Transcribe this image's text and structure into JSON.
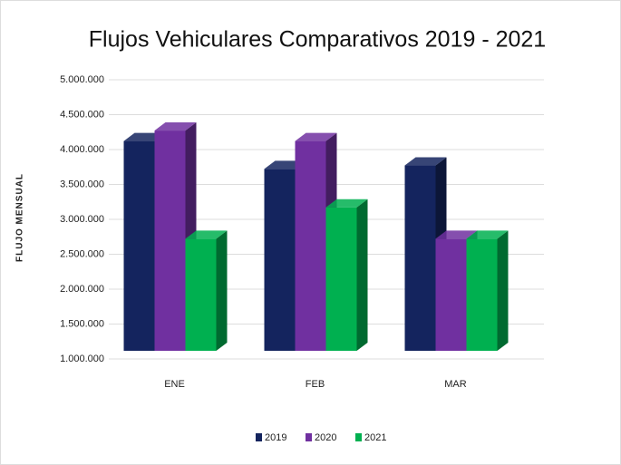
{
  "chart_data": {
    "type": "bar3d",
    "title": "Flujos Vehiculares Comparativos 2019 - 2021",
    "y_label": "FLUJO MENSUAL",
    "categories": [
      "ENE",
      "FEB",
      "MAR"
    ],
    "series": [
      {
        "name": "2019",
        "color": "#14245e",
        "values": [
          4200000,
          3800000,
          3850000
        ]
      },
      {
        "name": "2020",
        "color": "#7030a0",
        "values": [
          4350000,
          4200000,
          2800000
        ]
      },
      {
        "name": "2021",
        "color": "#00b050",
        "values": [
          2800000,
          3250000,
          2800000
        ]
      }
    ],
    "ylim": [
      1000000,
      5000000
    ],
    "yticks": [
      {
        "value": 1000000,
        "label": "1.000.000"
      },
      {
        "value": 1500000,
        "label": "1.500.000"
      },
      {
        "value": 2000000,
        "label": "2.000.000"
      },
      {
        "value": 2500000,
        "label": "2.500.000"
      },
      {
        "value": 3000000,
        "label": "3.000.000"
      },
      {
        "value": 3500000,
        "label": "3.500.000"
      },
      {
        "value": 4000000,
        "label": "4.000.000"
      },
      {
        "value": 4500000,
        "label": "4.500.000"
      },
      {
        "value": 5000000,
        "label": "5.000.000"
      }
    ],
    "grid": true,
    "legend": "bottom"
  }
}
